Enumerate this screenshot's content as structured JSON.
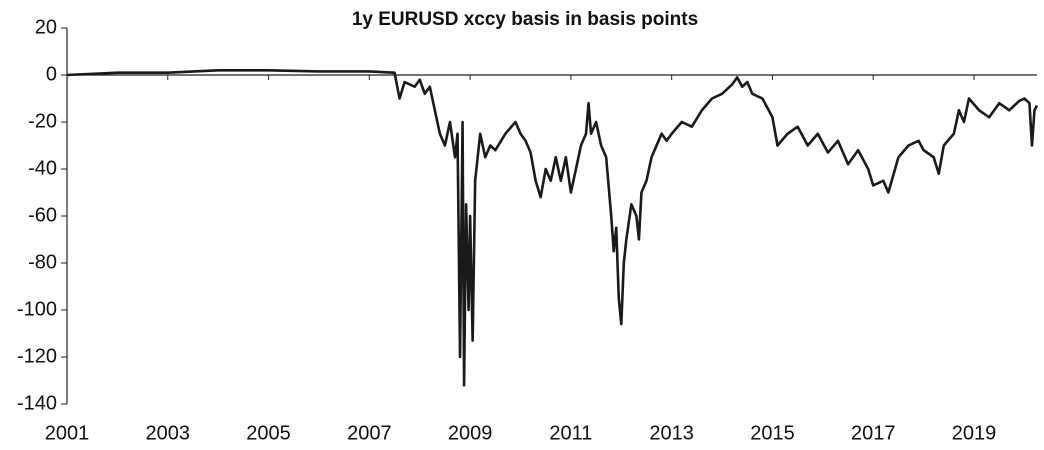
{
  "chart_data": {
    "type": "line",
    "title": "1y EURUSD xccy basis in basis points",
    "x": [
      2001,
      2002,
      2003,
      2004,
      2005,
      2006,
      2007,
      2007.5,
      2007.6,
      2007.7,
      2007.9,
      2008.0,
      2008.1,
      2008.2,
      2008.3,
      2008.4,
      2008.5,
      2008.6,
      2008.7,
      2008.75,
      2008.8,
      2008.85,
      2008.88,
      2008.92,
      2008.97,
      2009.0,
      2009.05,
      2009.1,
      2009.2,
      2009.3,
      2009.4,
      2009.5,
      2009.7,
      2009.9,
      2010.0,
      2010.1,
      2010.2,
      2010.3,
      2010.4,
      2010.5,
      2010.6,
      2010.7,
      2010.8,
      2010.9,
      2011.0,
      2011.1,
      2011.2,
      2011.3,
      2011.35,
      2011.4,
      2011.5,
      2011.6,
      2011.7,
      2011.8,
      2011.85,
      2011.9,
      2011.95,
      2012.0,
      2012.05,
      2012.1,
      2012.2,
      2012.3,
      2012.35,
      2012.4,
      2012.5,
      2012.6,
      2012.7,
      2012.8,
      2012.9,
      2013.0,
      2013.2,
      2013.4,
      2013.6,
      2013.8,
      2014.0,
      2014.2,
      2014.3,
      2014.4,
      2014.5,
      2014.6,
      2014.8,
      2015.0,
      2015.1,
      2015.3,
      2015.5,
      2015.7,
      2015.9,
      2016.1,
      2016.3,
      2016.5,
      2016.7,
      2016.9,
      2017.0,
      2017.2,
      2017.3,
      2017.5,
      2017.7,
      2017.9,
      2018.0,
      2018.2,
      2018.3,
      2018.4,
      2018.6,
      2018.7,
      2018.8,
      2018.9,
      2019.1,
      2019.3,
      2019.5,
      2019.7,
      2019.9,
      2020.0,
      2020.1,
      2020.15,
      2020.2,
      2020.25
    ],
    "series": [
      {
        "color": "#1a1a1a",
        "values": [
          0,
          1,
          1,
          2,
          2,
          1.5,
          1.5,
          1,
          -10,
          -3,
          -5,
          -2,
          -8,
          -5,
          -15,
          -25,
          -30,
          -20,
          -35,
          -25,
          -120,
          -20,
          -132,
          -55,
          -100,
          -60,
          -113,
          -45,
          -25,
          -35,
          -30,
          -32,
          -25,
          -20,
          -25,
          -28,
          -33,
          -45,
          -52,
          -40,
          -45,
          -35,
          -45,
          -35,
          -50,
          -40,
          -30,
          -25,
          -12,
          -25,
          -20,
          -30,
          -35,
          -60,
          -75,
          -65,
          -95,
          -106,
          -80,
          -70,
          -55,
          -60,
          -70,
          -50,
          -45,
          -35,
          -30,
          -25,
          -28,
          -25,
          -20,
          -22,
          -15,
          -10,
          -8,
          -4,
          -1,
          -5,
          -3,
          -8,
          -10,
          -18,
          -30,
          -25,
          -22,
          -30,
          -25,
          -33,
          -28,
          -38,
          -32,
          -40,
          -47,
          -45,
          -50,
          -35,
          -30,
          -28,
          -32,
          -35,
          -42,
          -30,
          -25,
          -15,
          -20,
          -10,
          -15,
          -18,
          -12,
          -15,
          -11,
          -10,
          -12,
          -30,
          -15,
          -13
        ]
      }
    ],
    "xlim": [
      2001,
      2020.25
    ],
    "xticks": [
      2001,
      2003,
      2005,
      2007,
      2009,
      2011,
      2013,
      2015,
      2017,
      2019
    ],
    "ylim": [
      -140,
      20
    ],
    "yticks": [
      -140,
      -120,
      -100,
      -80,
      -60,
      -40,
      -20,
      0,
      20
    ]
  }
}
